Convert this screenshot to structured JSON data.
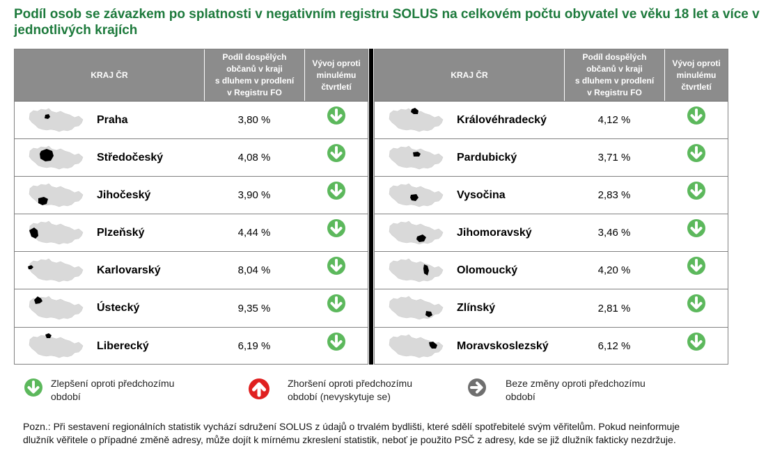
{
  "title": "Podíl osob se závazkem po splatnosti v negativním registru SOLUS na celkovém počtu obyvatel ve věku 18 let a více v jednotlivých krajích",
  "headers": {
    "region": "KRAJ ČR",
    "share_line1": "Podíl dospělých",
    "share_line2": "občanů v kraji",
    "share_line3": "s dluhem v prodlení",
    "share_line4": "v Registru FO",
    "trend_line1": "Vývoj oproti",
    "trend_line2": "minulému",
    "trend_line3": "čtvrtletí"
  },
  "left_rows": [
    {
      "name": "Praha",
      "value": "3,80 %",
      "trend": "down-green-icon"
    },
    {
      "name": "Středočeský",
      "value": "4,08 %",
      "trend": "down-green-icon"
    },
    {
      "name": "Jihočeský",
      "value": "3,90 %",
      "trend": "down-green-icon"
    },
    {
      "name": "Plzeňský",
      "value": "4,44 %",
      "trend": "down-green-icon"
    },
    {
      "name": "Karlovarský",
      "value": "8,04 %",
      "trend": "down-green-icon"
    },
    {
      "name": "Ústecký",
      "value": "9,35 %",
      "trend": "down-green-icon"
    },
    {
      "name": "Liberecký",
      "value": "6,19 %",
      "trend": "down-green-icon"
    }
  ],
  "right_rows": [
    {
      "name": "Královéhradecký",
      "value": "4,12 %",
      "trend": "down-green-icon"
    },
    {
      "name": "Pardubický",
      "value": "3,71 %",
      "trend": "down-green-icon"
    },
    {
      "name": "Vysočina",
      "value": "2,83 %",
      "trend": "down-green-icon"
    },
    {
      "name": "Jihomoravský",
      "value": "3,46 %",
      "trend": "down-green-icon"
    },
    {
      "name": "Olomoucký",
      "value": "4,20 %",
      "trend": "down-green-icon"
    },
    {
      "name": "Zlínský",
      "value": "2,81 %",
      "trend": "down-green-icon"
    },
    {
      "name": "Moravskoslezský",
      "value": "6,12 %",
      "trend": "down-green-icon"
    }
  ],
  "legend": {
    "improve_line1": "Zlepšení oproti předchozímu",
    "improve_line2": "období",
    "worse_line1": "Zhoršení oproti předchozímu",
    "worse_line2": "období (nevyskytuje se)",
    "same_line1": "Beze změny oproti předchozímu",
    "same_line2": "období"
  },
  "colors": {
    "title": "#1d7a3c",
    "header_bg": "#8c8c8c",
    "improve": "#5cb85c",
    "worse": "#e02020",
    "same": "#6f6f6f",
    "map_base": "#d9d9d9",
    "map_highlight": "#000000"
  },
  "note_line1": "Pozn.: Při sestavení regionálních statistik vychází sdružení SOLUS z údajů o trvalém bydlišti, které sdělí spotřebitelé svým věřitelům. Pokud neinformuje",
  "note_line2": "dlužník věřitele o případné změně adresy, může dojít k mírnému zkreslení statistik, neboť je použito PSČ z adresy, kde se již dlužník fakticky nezdržuje."
}
